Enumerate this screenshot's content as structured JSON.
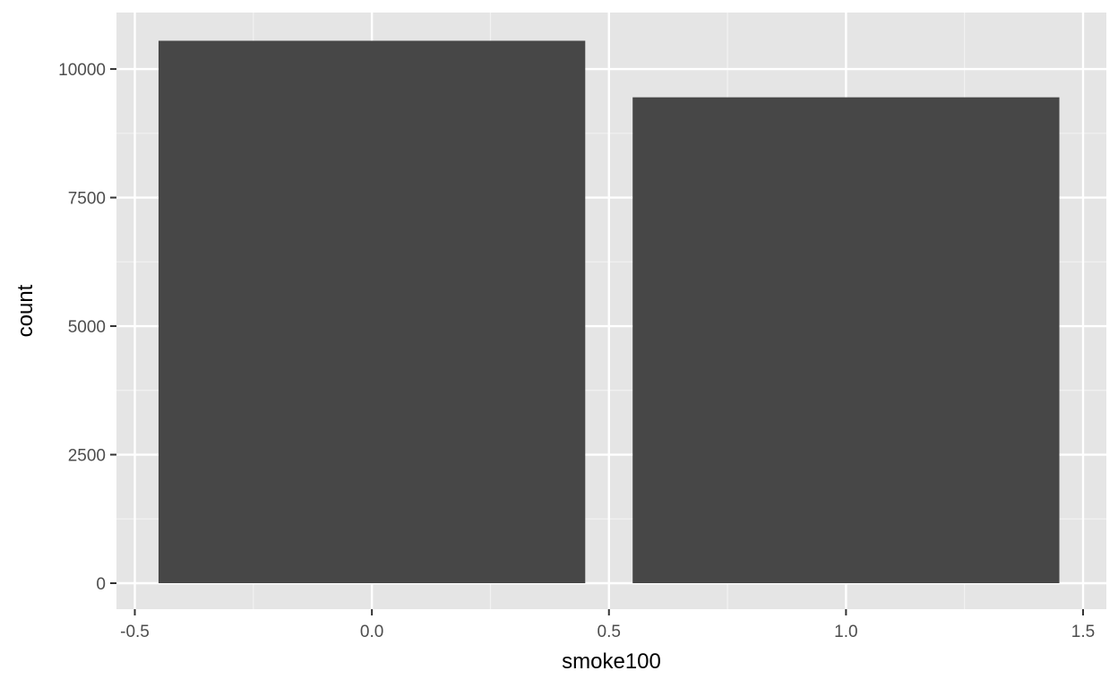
{
  "chart_data": {
    "type": "bar",
    "title": "",
    "xlabel": "smoke100",
    "ylabel": "count",
    "x": [
      0,
      1
    ],
    "values": [
      10550,
      9450
    ],
    "bar_width": 0.9,
    "xlim": [
      -0.5,
      1.5
    ],
    "ylim": [
      0,
      10550
    ],
    "x_ticks": [
      -0.5,
      0.0,
      0.5,
      1.0,
      1.5
    ],
    "x_tick_labels": [
      "-0.5",
      "0.0",
      "0.5",
      "1.0",
      "1.5"
    ],
    "x_minor_ticks": [
      -0.25,
      0.25,
      0.75,
      1.25
    ],
    "y_ticks": [
      0,
      2500,
      5000,
      7500,
      10000
    ],
    "y_tick_labels": [
      "0",
      "2500",
      "5000",
      "7500",
      "10000"
    ],
    "y_minor_ticks": [
      1250,
      3750,
      6250,
      8750
    ],
    "grid": true,
    "legend": "none",
    "colors": {
      "panel_background": "#e5e5e5",
      "grid_major": "#ffffff",
      "grid_minor": "#f2f2f2",
      "bar_fill": "#474747",
      "tick_mark": "#333333",
      "tick_label": "#4d4d4d",
      "axis_title": "#000000"
    }
  }
}
